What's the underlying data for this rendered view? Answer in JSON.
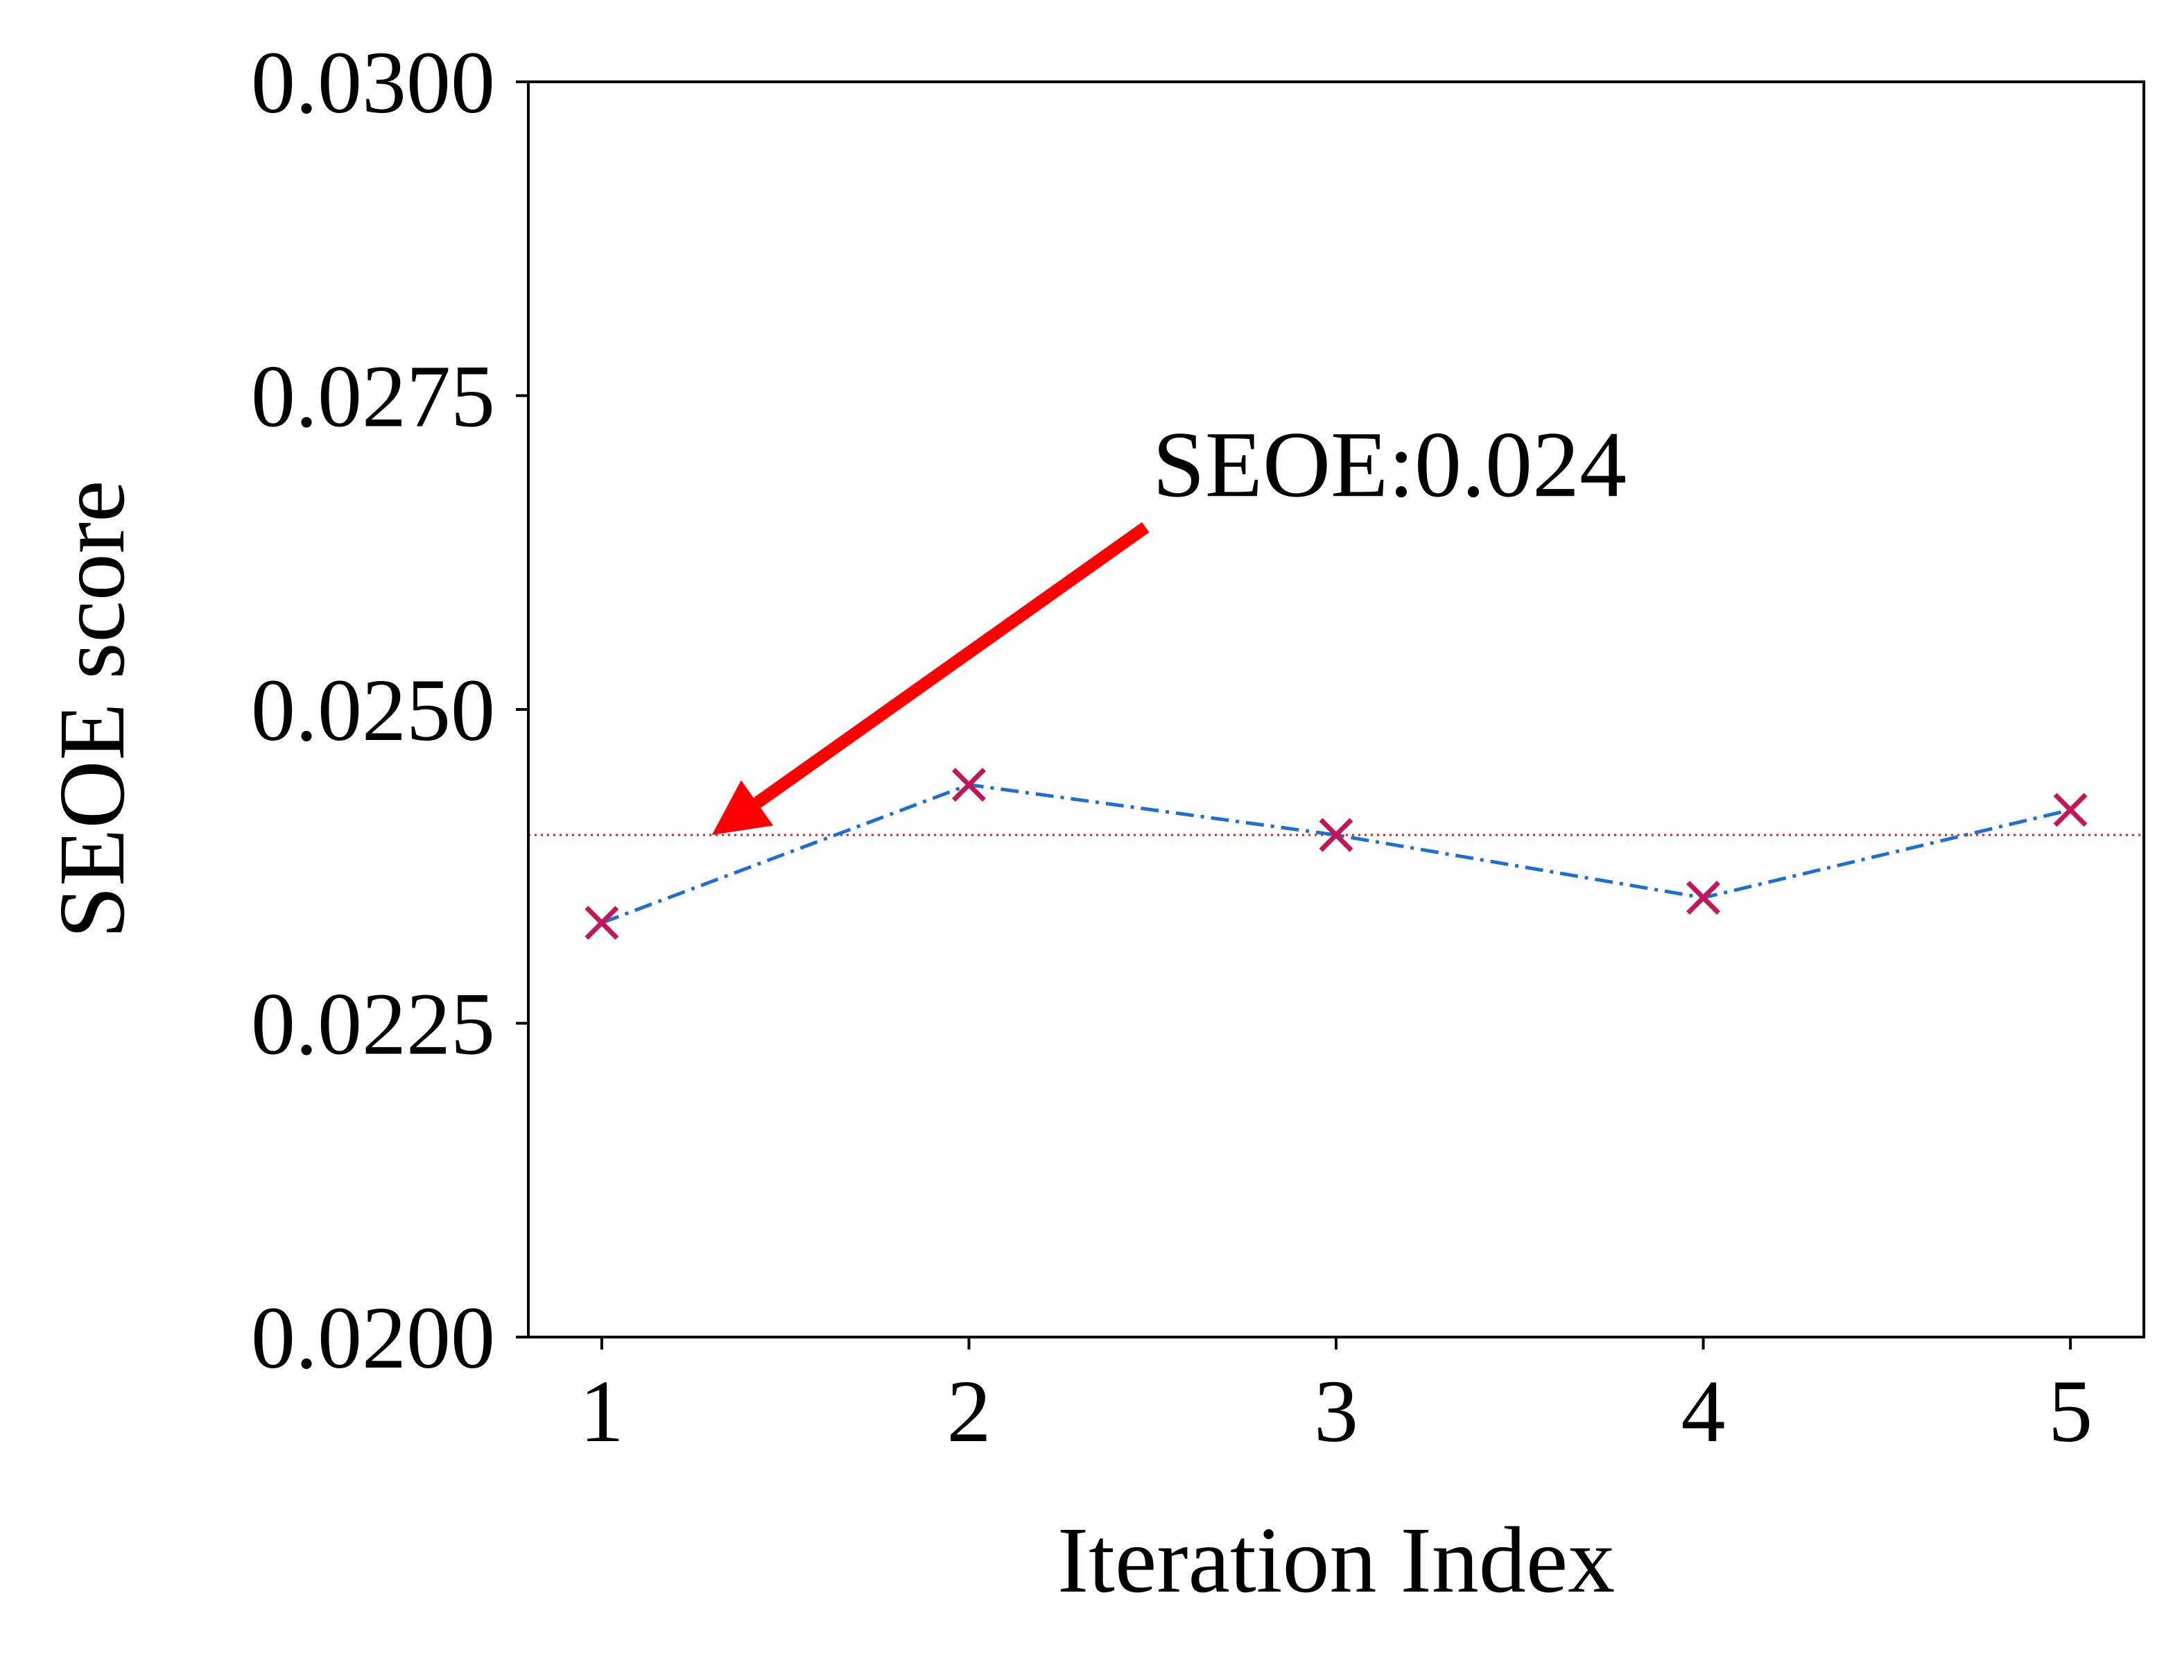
{
  "chart_data": {
    "type": "line",
    "title": "",
    "xlabel": "Iteration Index",
    "ylabel": "SEOE score",
    "x": [
      1,
      2,
      3,
      4,
      5
    ],
    "xticks": [
      "1",
      "2",
      "3",
      "4",
      "5"
    ],
    "yticks": [
      "0.0200",
      "0.0225",
      "0.0250",
      "0.0275",
      "0.0300"
    ],
    "ytick_values": [
      0.02,
      0.0225,
      0.025,
      0.0275,
      0.03
    ],
    "xlim": [
      0.8,
      5.2
    ],
    "ylim": [
      0.02,
      0.03
    ],
    "grid": false,
    "series": [
      {
        "values": [
          0.0233,
          0.0244,
          0.024,
          0.0235,
          0.0242
        ]
      }
    ],
    "reference_line": {
      "y": 0.024
    },
    "annotation": {
      "text": "SEOE:0.024",
      "point": [
        1.3,
        0.024
      ],
      "text_at": [
        2.5,
        0.0267
      ]
    },
    "colors": {
      "line": "#1f6fcf",
      "marker": "#c2185b",
      "reference": "#e31a1c",
      "arrow": "#ff0000"
    }
  }
}
